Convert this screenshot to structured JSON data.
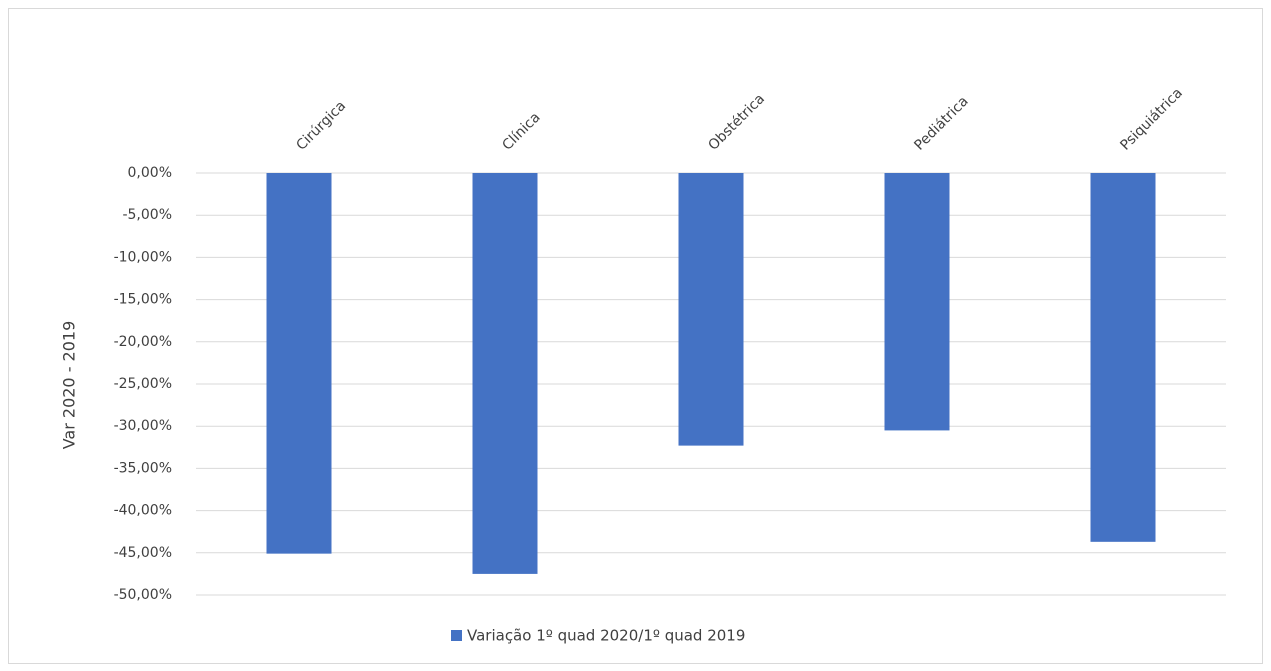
{
  "chart_data": {
    "type": "bar",
    "y_label": "Var 2020 - 2019",
    "categories": [
      "Cirúrgica",
      "Clínica",
      "Obstétrica",
      "Pediátrica",
      "Psiquiátrica"
    ],
    "series": [
      {
        "name": "Variação 1º quad 2020/1º quad 2019",
        "color": "#4472c4",
        "values": [
          -45.1,
          -47.5,
          -32.3,
          -30.5,
          -43.7
        ]
      }
    ],
    "ylim": [
      -50,
      0
    ],
    "yticks": [
      {
        "value": 0,
        "label": "0,00%"
      },
      {
        "value": -5,
        "label": "-5,00%"
      },
      {
        "value": -10,
        "label": "-10,00%"
      },
      {
        "value": -15,
        "label": "-15,00%"
      },
      {
        "value": -20,
        "label": "-20,00%"
      },
      {
        "value": -25,
        "label": "-25,00%"
      },
      {
        "value": -30,
        "label": "-30,00%"
      },
      {
        "value": -35,
        "label": "-35,00%"
      },
      {
        "value": -40,
        "label": "-40,00%"
      },
      {
        "value": -45,
        "label": "-45,00%"
      },
      {
        "value": -50,
        "label": "-50,00%"
      }
    ],
    "grid": true,
    "legend": "bottom"
  }
}
